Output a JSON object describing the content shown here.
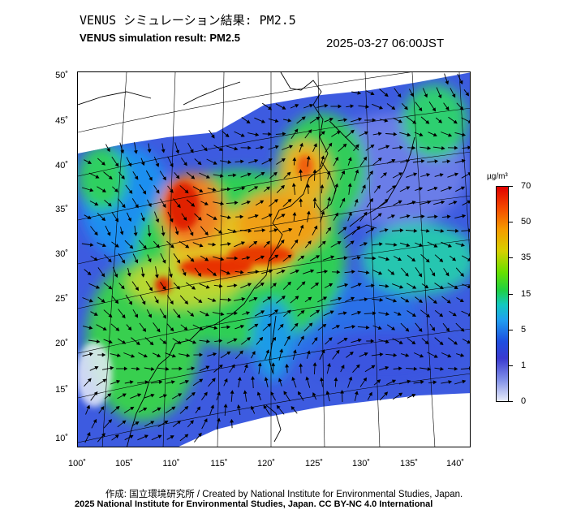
{
  "header": {
    "title_jp": "VENUS シミュレーション結果: PM2.5",
    "title_en": "VENUS simulation result: PM2.5",
    "timestamp": "2025-03-27 06:00JST"
  },
  "map": {
    "lat_labels": [
      "50˚",
      "45˚",
      "40˚",
      "35˚",
      "30˚",
      "25˚",
      "20˚",
      "15˚",
      "10˚"
    ],
    "lon_labels": [
      "100˚",
      "105˚",
      "110˚",
      "115˚",
      "120˚",
      "125˚",
      "130˚",
      "135˚",
      "140˚"
    ],
    "wind_arrow_color": "#000000",
    "coastline_color": "#000000"
  },
  "colorbar": {
    "unit": "µg/m³",
    "ticks": [
      "70",
      "50",
      "35",
      "15",
      "5",
      "1",
      "0"
    ],
    "colors": [
      "#e00000",
      "#f59c00",
      "#d7d000",
      "#20d040",
      "#12c8c0",
      "#1e50e0",
      "#e8ecfa"
    ]
  },
  "footer": {
    "credit_line1": "作成: 国立環境研究所 / Created by National Institute for Environmental Studies, Japan.",
    "credit_line2": "2025 National Institute for Environmental Studies, Japan. CC BY-NC 4.0 International"
  }
}
